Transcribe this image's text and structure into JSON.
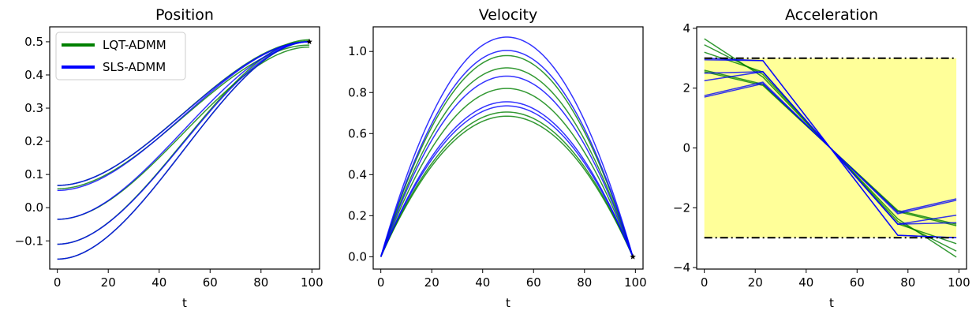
{
  "figure": {
    "colors": {
      "lqt": "#008000",
      "sls": "#0000ff",
      "bounds_fill": "#ffff99",
      "bounds_line": "#000000"
    }
  },
  "chart_data": [
    {
      "type": "line",
      "title": "Position",
      "xlabel": "t",
      "ylabel": "",
      "xlim": [
        -3,
        103
      ],
      "ylim": [
        -0.185,
        0.545
      ],
      "xticks": [
        "0",
        "20",
        "40",
        "60",
        "80",
        "100"
      ],
      "xtick_values": [
        0,
        20,
        40,
        60,
        80,
        100
      ],
      "yticks": [
        "−0.1",
        "0.0",
        "0.1",
        "0.2",
        "0.3",
        "0.4",
        "0.5"
      ],
      "ytick_values": [
        -0.1,
        0.0,
        0.1,
        0.2,
        0.3,
        0.4,
        0.5
      ],
      "legend": {
        "position": "top-left",
        "entries": [
          "LQT-ADMM",
          "SLS-ADMM"
        ]
      },
      "kind": "position",
      "lqt": {
        "name": "LQT-ADMM",
        "starts": [
          0.067,
          0.057,
          -0.035,
          -0.11,
          -0.155
        ],
        "ends": [
          0.502,
          0.49,
          0.484,
          0.506,
          0.5
        ]
      },
      "sls": {
        "name": "SLS-ADMM",
        "starts": [
          0.067,
          0.052,
          -0.035,
          -0.11,
          -0.155
        ],
        "ends": [
          0.5,
          0.5,
          0.5,
          0.5,
          0.5
        ]
      },
      "marker": {
        "x": 99,
        "y": 0.5
      }
    },
    {
      "type": "line",
      "title": "Velocity",
      "xlabel": "t",
      "ylabel": "",
      "xlim": [
        -3,
        103
      ],
      "ylim": [
        -0.06,
        1.12
      ],
      "xticks": [
        "0",
        "20",
        "40",
        "60",
        "80",
        "100"
      ],
      "xtick_values": [
        0,
        20,
        40,
        60,
        80,
        100
      ],
      "yticks": [
        "0.0",
        "0.2",
        "0.4",
        "0.6",
        "0.8",
        "1.0"
      ],
      "ytick_values": [
        0.0,
        0.2,
        0.4,
        0.6,
        0.8,
        1.0
      ],
      "kind": "velocity",
      "lqt": {
        "name": "LQT-ADMM",
        "peaks": [
          0.98,
          0.92,
          0.82,
          0.705,
          0.685
        ]
      },
      "sls": {
        "name": "SLS-ADMM",
        "peaks": [
          1.07,
          1.005,
          0.88,
          0.755,
          0.735
        ]
      },
      "marker": {
        "x": 99,
        "y": 0.0
      }
    },
    {
      "type": "line",
      "title": "Acceleration",
      "xlabel": "t",
      "ylabel": "",
      "xlim": [
        -3,
        103
      ],
      "ylim": [
        -4.05,
        4.05
      ],
      "xticks": [
        "0",
        "20",
        "40",
        "60",
        "80",
        "100"
      ],
      "xtick_values": [
        0,
        20,
        40,
        60,
        80,
        100
      ],
      "yticks": [
        "−4",
        "−2",
        "0",
        "2",
        "4"
      ],
      "ytick_values": [
        -4,
        -2,
        0,
        2,
        4
      ],
      "kind": "acceleration",
      "bounds": [
        -3,
        3
      ],
      "lqt": {
        "name": "LQT-ADMM",
        "starts": [
          3.65,
          3.45,
          3.2,
          2.6,
          2.55
        ]
      },
      "sls": {
        "name": "SLS-ADMM",
        "starts": [
          3.0,
          2.95,
          2.5,
          2.25,
          1.75,
          1.7
        ]
      }
    }
  ]
}
